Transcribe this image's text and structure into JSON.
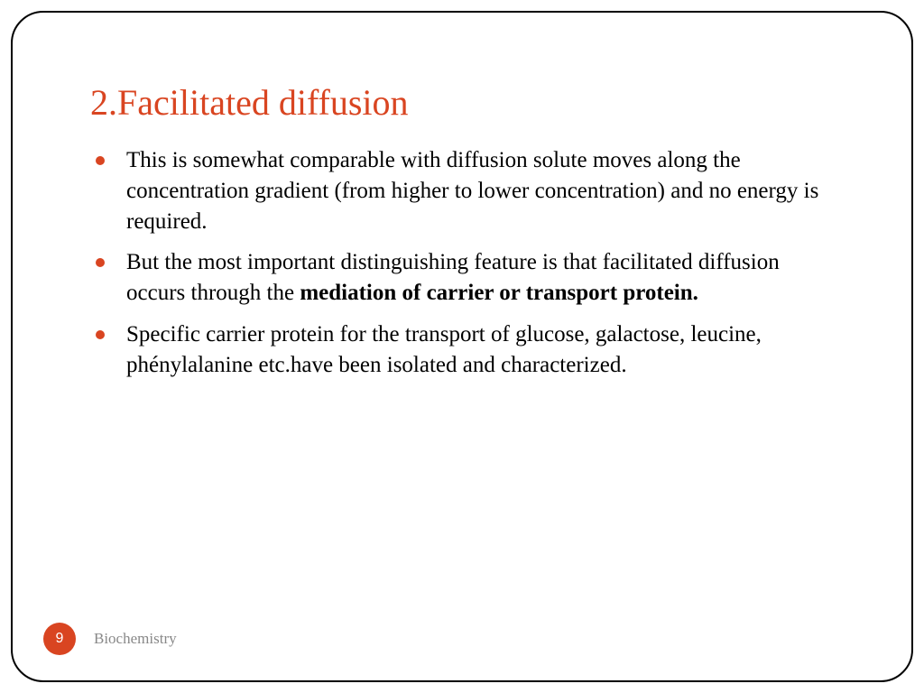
{
  "slide": {
    "title": "2.Facilitated diffusion",
    "title_color": "#d94521",
    "bullets": [
      {
        "text_before": "This is somewhat comparable with diffusion solute moves along the concentration gradient (from higher to lower concentration) and no energy is required.",
        "bold": "",
        "text_after": ""
      },
      {
        "text_before": "But the most important distinguishing feature is that facilitated diffusion occurs through the ",
        "bold": "mediation of carrier or transport protein.",
        "text_after": ""
      },
      {
        "text_before": "Specific carrier protein for the transport of glucose, galactose, leucine, phénylalanine etc.have been isolated and characterized.",
        "bold": "",
        "text_after": ""
      }
    ],
    "bullet_color": "#d94521",
    "body_fontsize": 25,
    "title_fontsize": 40
  },
  "footer": {
    "page_number": "9",
    "label": "Biochemistry",
    "page_bg": "#d94521",
    "label_color": "#888888"
  },
  "frame": {
    "border_color": "#000000",
    "border_radius": 36,
    "background": "#ffffff"
  }
}
